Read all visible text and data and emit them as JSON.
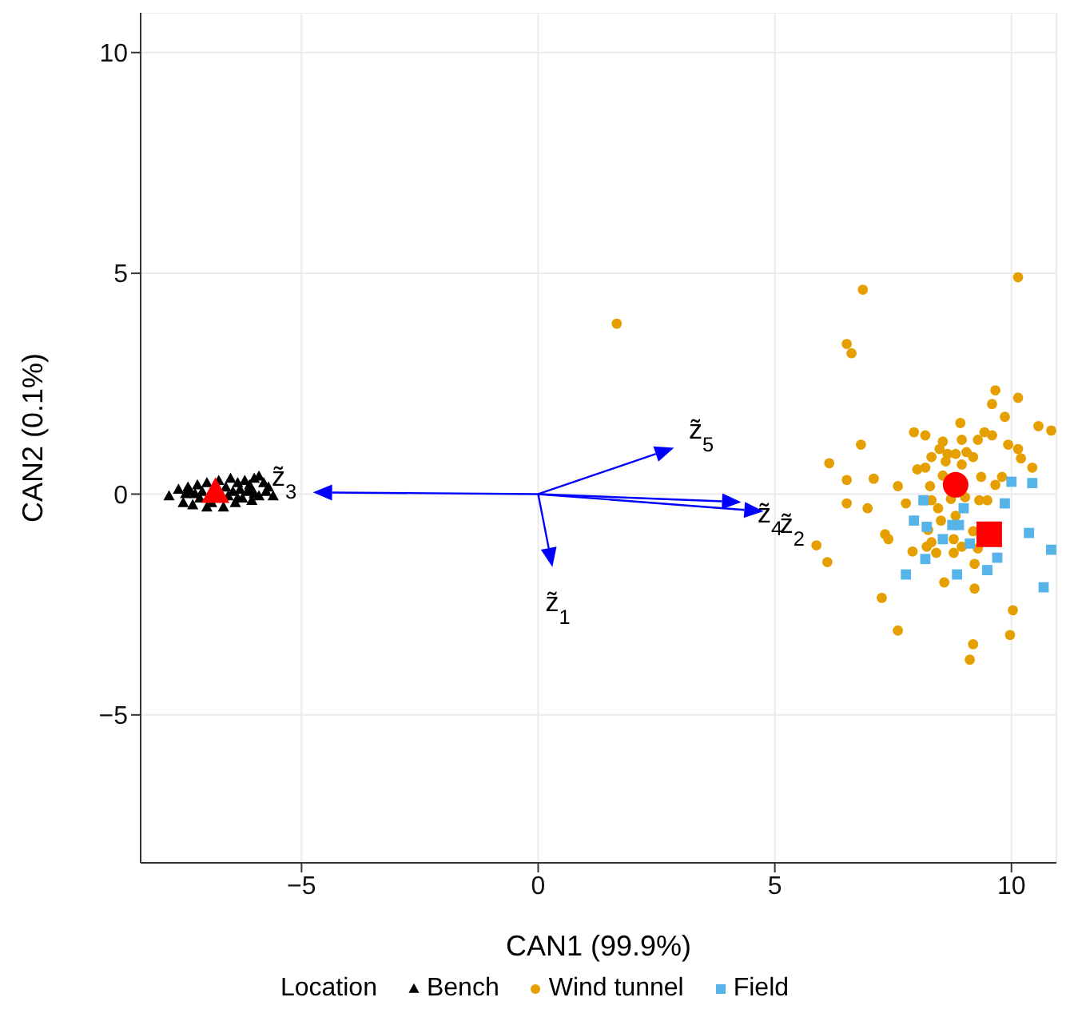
{
  "chart_data": {
    "type": "scatter",
    "xlabel": "CAN1 (99.9%)",
    "ylabel": "CAN2 (0.1%)",
    "legend_title": "Location",
    "legend": "bottom",
    "grid": true,
    "xlim": [
      -8.4,
      10.95
    ],
    "ylim": [
      -8.35,
      10.9
    ],
    "xticks": [
      -5,
      0,
      5,
      10
    ],
    "yticks": [
      -5,
      0,
      5,
      10
    ],
    "series": [
      {
        "name": "Bench",
        "marker": "triangle",
        "color": "#000000",
        "x": [
          -7.8,
          -7.6,
          -7.5,
          -7.4,
          -7.35,
          -7.3,
          -7.2,
          -7.15,
          -7.1,
          -7.0,
          -7.0,
          -6.75,
          -6.6,
          -6.55,
          -6.5,
          -6.45,
          -6.4,
          -6.35,
          -6.3,
          -6.25,
          -6.2,
          -6.15,
          -6.1,
          -6.05,
          -6.0,
          -6.0,
          -5.9,
          -5.9,
          -5.8,
          -5.75,
          -5.7,
          -5.6,
          -7.25,
          -6.65,
          -6.9,
          -7.45,
          -6.35,
          -6.05
        ],
        "values": [
          -0.05,
          0.1,
          -0.2,
          0.15,
          0.05,
          -0.25,
          0.2,
          -0.1,
          0.05,
          0.25,
          -0.3,
          0.3,
          0.15,
          -0.05,
          0.35,
          0.05,
          -0.2,
          0.25,
          0.1,
          -0.1,
          0.3,
          0.05,
          0.2,
          -0.15,
          0.35,
          0.0,
          0.4,
          -0.05,
          0.25,
          0.05,
          0.15,
          -0.05,
          0.0,
          -0.3,
          -0.2,
          0.0,
          -0.1,
          0.1
        ]
      },
      {
        "name": "Wind tunnel",
        "marker": "circle",
        "color": "#e69f00",
        "x": [
          1.66,
          6.86,
          10.14,
          6.52,
          6.62,
          9.66,
          9.59,
          10.14,
          9.86,
          8.92,
          10.57,
          10.84,
          7.94,
          8.18,
          9.43,
          9.59,
          6.82,
          8.55,
          8.48,
          8.95,
          9.29,
          9.93,
          10.14,
          8.31,
          8.65,
          8.82,
          9.05,
          9.19,
          8.61,
          8.95,
          10.2,
          8.01,
          8.18,
          8.55,
          10.44,
          9.36,
          9.8,
          9.66,
          6.52,
          7.09,
          7.6,
          8.28,
          9.02,
          9.32,
          9.49,
          8.31,
          8.72,
          6.52,
          7.77,
          6.96,
          8.45,
          8.82,
          8.51,
          8.24,
          9.19,
          7.33,
          7.4,
          8.78,
          8.31,
          8.95,
          9.29,
          8.21,
          7.91,
          8.78,
          8.41,
          9.22,
          8.58,
          9.22,
          7.26,
          10.03,
          7.6,
          9.97,
          9.19,
          9.12,
          6.15,
          5.88,
          6.11
        ],
        "values": [
          3.86,
          4.63,
          4.91,
          3.4,
          3.19,
          2.35,
          2.04,
          2.18,
          1.75,
          1.61,
          1.54,
          1.44,
          1.4,
          1.33,
          1.4,
          1.33,
          1.12,
          1.19,
          1.02,
          1.23,
          1.23,
          1.12,
          1.02,
          0.84,
          0.91,
          0.91,
          0.95,
          0.84,
          0.74,
          0.67,
          0.81,
          0.56,
          0.6,
          0.42,
          0.6,
          0.39,
          0.39,
          0.21,
          0.32,
          0.35,
          0.18,
          0.18,
          -0.07,
          -0.14,
          -0.14,
          -0.14,
          -0.11,
          -0.21,
          -0.21,
          -0.32,
          -0.32,
          -0.49,
          -0.6,
          -0.81,
          -0.84,
          -0.91,
          -1.02,
          -1.02,
          -1.09,
          -1.19,
          -1.23,
          -1.19,
          -1.3,
          -1.33,
          -1.33,
          -1.58,
          -2.0,
          -2.14,
          -2.35,
          -2.63,
          -3.09,
          -3.19,
          -3.4,
          -3.75,
          0.7,
          -1.16,
          -1.54
        ]
      },
      {
        "name": "Field",
        "marker": "square",
        "color": "#56b4e9",
        "x": [
          10.0,
          10.44,
          8.14,
          9.86,
          8.99,
          7.94,
          8.21,
          8.75,
          8.89,
          10.37,
          8.55,
          9.12,
          10.84,
          9.7,
          8.18,
          9.49,
          7.77,
          8.85,
          10.68
        ],
        "values": [
          0.28,
          0.25,
          -0.14,
          -0.21,
          -0.32,
          -0.6,
          -0.74,
          -0.7,
          -0.7,
          -0.88,
          -1.02,
          -1.12,
          -1.26,
          -1.44,
          -1.47,
          -1.72,
          -1.82,
          -1.82,
          -2.11
        ]
      },
      {
        "marker": "triangle",
        "color": "#ff0000",
        "x": [
          -6.82
        ],
        "values": [
          0.03
        ]
      },
      {
        "marker": "circle",
        "color": "#ff0000",
        "x": [
          8.82
        ],
        "values": [
          0.21
        ]
      },
      {
        "marker": "square",
        "color": "#ff0000",
        "x": [
          9.53
        ],
        "values": [
          -0.91
        ]
      }
    ],
    "annotations": [
      "z̃$_{1}$",
      "z̃$_{2}$",
      "z̃$_{3}$",
      "z̃$_{4}$",
      "z̃$_{5}$"
    ]
  }
}
